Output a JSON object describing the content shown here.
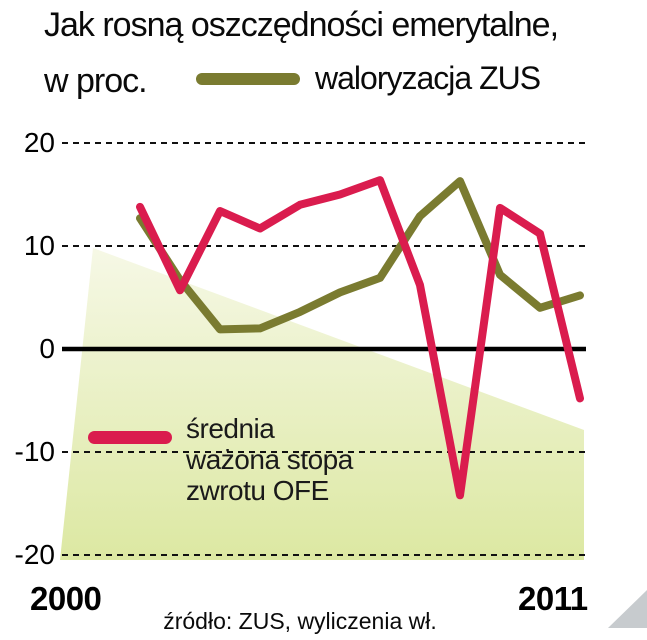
{
  "header": {
    "title": "Jak rosną oszczędności emerytalne,",
    "subtitle": "w proc."
  },
  "legend": {
    "zus": "waloryzacja ZUS",
    "ofe_lines": [
      "średnia",
      "ważona stopa",
      "zwrotu OFE"
    ]
  },
  "axis": {
    "x_left": "2000",
    "x_right": "2011",
    "yticks": [
      20,
      10,
      0,
      -10,
      -20
    ]
  },
  "source": "źródło: ZUS, wyliczenia wł.",
  "colors": {
    "zus_line": "#7a7b30",
    "ofe_line": "#da1c4e",
    "grid": "#111111",
    "zero_line": "#000000",
    "band_top": "#f6f8e6",
    "band_bottom": "#dce8a2",
    "corner": "#c7cbce",
    "text": "#000000"
  },
  "chart_data": {
    "type": "line",
    "title": "Jak rosną oszczędności emerytalne, w proc.",
    "x": [
      2000,
      2001,
      2002,
      2003,
      2004,
      2005,
      2006,
      2007,
      2008,
      2009,
      2010,
      2011
    ],
    "series": [
      {
        "name": "waloryzacja ZUS",
        "color": "#7a7b30",
        "values": [
          12.7,
          6.7,
          1.9,
          2.0,
          3.6,
          5.5,
          6.9,
          12.9,
          16.3,
          7.2,
          4.0,
          5.2
        ]
      },
      {
        "name": "średnia ważona stopa zwrotu OFE",
        "color": "#da1c4e",
        "values": [
          13.8,
          5.7,
          13.4,
          11.7,
          14.0,
          15.0,
          16.4,
          6.2,
          -14.2,
          13.7,
          11.2,
          -4.8
        ]
      }
    ],
    "ylim": [
      -20,
      20
    ],
    "yticks": [
      20,
      10,
      0,
      -10,
      -20
    ],
    "x_axis_labels_shown": [
      "2000",
      "2011"
    ],
    "grid": "horizontal dashed, zero line solid",
    "legend_position": "inline on chart",
    "source": "źródło: ZUS, wyliczenia wł."
  }
}
